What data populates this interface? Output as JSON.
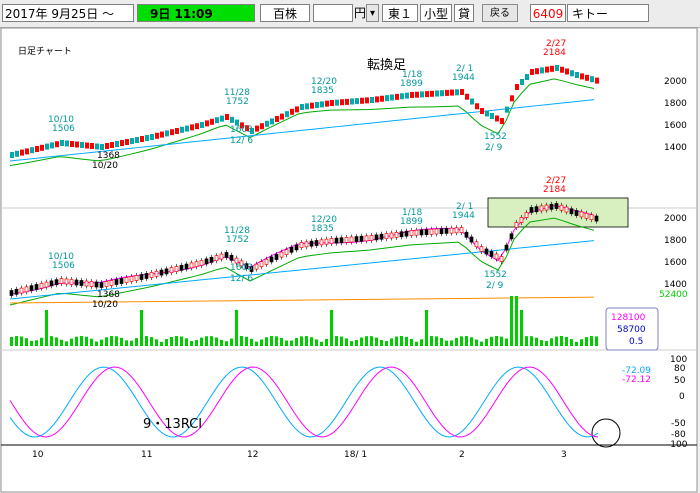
{
  "toolbar": {
    "date": "2017年 9月25日 ～",
    "time": "9日 11:09",
    "unit_name": "百株",
    "currency_value": "",
    "currency_label": "円",
    "market": "東１",
    "lot_type": "小型",
    "credit": "貸",
    "back_label": "戻る",
    "stock_code": "6409",
    "stock_name": "キトー"
  },
  "chart": {
    "title": "日足チャート",
    "chart_type_label": "転換足",
    "rci_label": "9・13RCI",
    "volume_box": [
      "128100",
      "58700",
      "0.5"
    ],
    "rci_values": [
      "-72.09",
      "-72.12"
    ],
    "volume_side_value": "52400",
    "price_axis_top": [
      "2000",
      "1800",
      "1600",
      "1400"
    ],
    "price_axis_mid": [
      "2000",
      "1800",
      "1600",
      "1400"
    ],
    "rci_axis": [
      "100",
      "80",
      "50",
      "0",
      "-50",
      "-80",
      "-100"
    ],
    "date_axis": [
      "10",
      "11",
      "12",
      "18/ 1",
      "2",
      "3"
    ],
    "annotations_top": [
      {
        "date": "10/10",
        "price": "1506",
        "color": "#009999"
      },
      {
        "date": "11/28",
        "price": "1752",
        "color": "#009999"
      },
      {
        "date": "12/20",
        "price": "1835",
        "color": "#009999"
      },
      {
        "date": "1/18",
        "price": "1899",
        "color": "#009999"
      },
      {
        "date": "2/ 1",
        "price": "1944",
        "color": "#009999"
      },
      {
        "date": "2/27",
        "price": "2184",
        "color": "#ff0000"
      }
    ],
    "annotations_low": [
      {
        "date": "10/20",
        "price": "1368"
      },
      {
        "date": "12/ 6",
        "price": "1603"
      },
      {
        "date": "2/ 9",
        "price": "1552"
      }
    ]
  },
  "colors": {
    "up_bar": "#ff0000",
    "down_bar": "#00aaaa",
    "ma_short": "#ff00ff",
    "ma_mid": "#00aa00",
    "ma_long": "#00aaff",
    "ma_very_long": "#ff8c00",
    "volume": "#00cc00",
    "rci_short": "#ff00ff",
    "rci_long": "#00aaff"
  }
}
